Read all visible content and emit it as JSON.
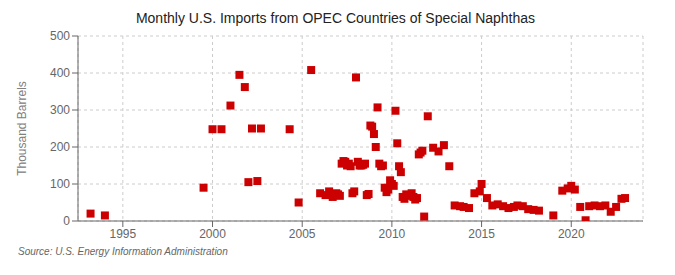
{
  "chart_data": {
    "type": "scatter",
    "title": "Monthly U.S. Imports from OPEC Countries of Special Naphthas",
    "ylabel": "Thousand Barrels",
    "source": "Source: U.S. Energy Information Administration",
    "color": "#cc0000",
    "marker": "square",
    "grid": true,
    "xlim": [
      1992.5,
      2024
    ],
    "ylim": [
      0,
      500
    ],
    "yticks": [
      0,
      100,
      200,
      300,
      400,
      500
    ],
    "xticks": [
      1995,
      2000,
      2005,
      2010,
      2015,
      2020
    ],
    "x": [
      1993.2,
      1994.0,
      1999.5,
      2000.0,
      2000.5,
      2001.0,
      2001.5,
      2001.8,
      2002.2,
      2002.7,
      2002.0,
      2002.5,
      2004.3,
      2004.8,
      2005.5,
      2006.0,
      2006.3,
      2006.5,
      2006.7,
      2006.9,
      2007.0,
      2007.1,
      2007.2,
      2007.3,
      2007.4,
      2007.5,
      2007.6,
      2007.7,
      2007.8,
      2007.9,
      2008.0,
      2008.1,
      2008.2,
      2008.3,
      2008.4,
      2008.5,
      2008.6,
      2008.7,
      2008.8,
      2008.9,
      2009.0,
      2009.1,
      2009.2,
      2009.3,
      2009.4,
      2009.5,
      2009.6,
      2009.7,
      2009.8,
      2009.9,
      2010.0,
      2010.1,
      2010.2,
      2010.3,
      2010.4,
      2010.5,
      2010.6,
      2010.7,
      2010.8,
      2010.9,
      2011.0,
      2011.1,
      2011.2,
      2011.3,
      2011.4,
      2011.5,
      2011.6,
      2011.7,
      2011.8,
      2012.0,
      2012.3,
      2012.6,
      2012.9,
      2013.2,
      2013.5,
      2013.8,
      2014.0,
      2014.3,
      2014.6,
      2014.9,
      2015.0,
      2015.3,
      2015.6,
      2015.9,
      2016.2,
      2016.5,
      2016.8,
      2017.0,
      2017.3,
      2017.6,
      2017.9,
      2018.2,
      2019.0,
      2019.5,
      2019.8,
      2020.0,
      2020.2,
      2020.5,
      2020.8,
      2021.0,
      2021.3,
      2021.6,
      2021.9,
      2022.2,
      2022.5,
      2022.8,
      2023.0
    ],
    "values": [
      20,
      15,
      90,
      248,
      248,
      312,
      395,
      362,
      250,
      250,
      105,
      108,
      248,
      50,
      408,
      75,
      70,
      80,
      65,
      75,
      72,
      68,
      155,
      162,
      160,
      150,
      155,
      148,
      75,
      80,
      388,
      160,
      150,
      150,
      152,
      155,
      70,
      73,
      258,
      255,
      235,
      200,
      307,
      155,
      148,
      150,
      90,
      78,
      85,
      110,
      100,
      95,
      298,
      210,
      148,
      132,
      65,
      60,
      72,
      70,
      68,
      75,
      65,
      58,
      62,
      180,
      185,
      190,
      12,
      283,
      198,
      188,
      205,
      148,
      42,
      40,
      38,
      35,
      75,
      80,
      100,
      62,
      42,
      45,
      40,
      35,
      38,
      42,
      40,
      32,
      30,
      28,
      15,
      82,
      88,
      95,
      85,
      38,
      2,
      40,
      42,
      40,
      42,
      25,
      38,
      60,
      62
    ]
  }
}
